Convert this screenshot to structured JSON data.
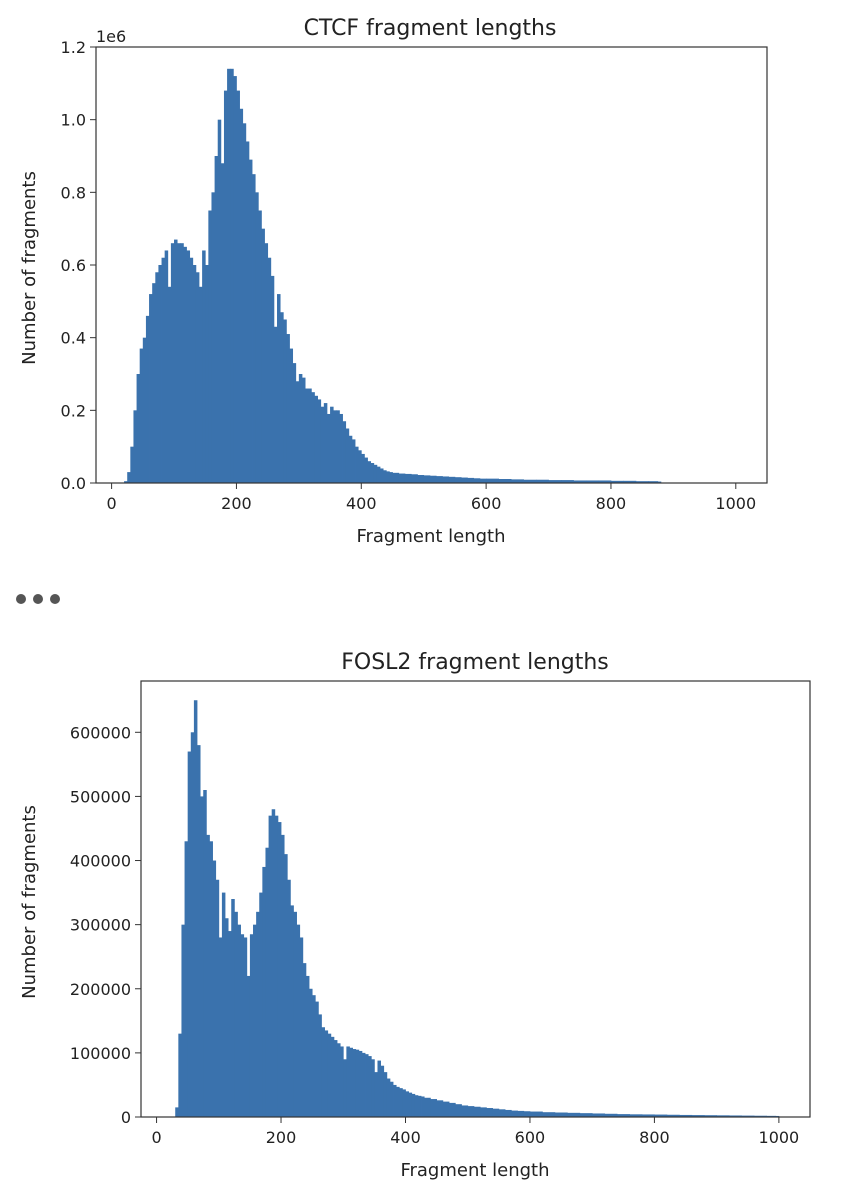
{
  "chart_data": [
    {
      "type": "bar",
      "title": "CTCF fragment lengths",
      "xlabel": "Fragment length",
      "ylabel": "Number of fragments",
      "y_offset_label": "1e6",
      "xlim": [
        -25,
        1050
      ],
      "ylim": [
        0,
        1.2
      ],
      "y_scale_factor": 1000000,
      "xticks": [
        0,
        200,
        400,
        600,
        800,
        1000
      ],
      "yticks": [
        0.0,
        0.2,
        0.4,
        0.6,
        0.8,
        1.0,
        1.2
      ],
      "ytick_labels": [
        "0.0",
        "0.2",
        "0.4",
        "0.6",
        "0.8",
        "1.0",
        "1.2"
      ],
      "bar_color": "#3a72ad",
      "bin_width": 5,
      "x": [
        20,
        25,
        30,
        35,
        40,
        45,
        50,
        55,
        60,
        65,
        70,
        75,
        80,
        85,
        90,
        95,
        100,
        105,
        110,
        115,
        120,
        125,
        130,
        135,
        140,
        145,
        150,
        155,
        160,
        165,
        170,
        175,
        180,
        185,
        190,
        195,
        200,
        205,
        210,
        215,
        220,
        225,
        230,
        235,
        240,
        245,
        250,
        255,
        260,
        265,
        270,
        275,
        280,
        285,
        290,
        295,
        300,
        305,
        310,
        315,
        320,
        325,
        330,
        335,
        340,
        345,
        350,
        355,
        360,
        365,
        370,
        375,
        380,
        385,
        390,
        395,
        400,
        405,
        410,
        415,
        420,
        425,
        430,
        435,
        440,
        445,
        450,
        460,
        470,
        480,
        490,
        500,
        510,
        520,
        530,
        540,
        550,
        560,
        570,
        580,
        590,
        600,
        620,
        640,
        660,
        680,
        700,
        720,
        740,
        760,
        780,
        800,
        820,
        840,
        860,
        875
      ],
      "values": [
        0.005,
        0.03,
        0.1,
        0.2,
        0.3,
        0.37,
        0.4,
        0.46,
        0.52,
        0.55,
        0.58,
        0.6,
        0.62,
        0.64,
        0.54,
        0.66,
        0.67,
        0.66,
        0.66,
        0.65,
        0.64,
        0.62,
        0.6,
        0.58,
        0.54,
        0.64,
        0.6,
        0.75,
        0.8,
        0.9,
        1.0,
        0.88,
        1.08,
        1.14,
        1.14,
        1.12,
        1.08,
        1.03,
        0.99,
        0.94,
        0.89,
        0.85,
        0.8,
        0.75,
        0.7,
        0.66,
        0.62,
        0.57,
        0.43,
        0.52,
        0.47,
        0.45,
        0.41,
        0.37,
        0.33,
        0.28,
        0.3,
        0.29,
        0.26,
        0.26,
        0.25,
        0.24,
        0.23,
        0.21,
        0.22,
        0.19,
        0.21,
        0.2,
        0.2,
        0.19,
        0.17,
        0.15,
        0.13,
        0.12,
        0.1,
        0.09,
        0.08,
        0.07,
        0.06,
        0.055,
        0.05,
        0.045,
        0.04,
        0.035,
        0.032,
        0.03,
        0.028,
        0.026,
        0.025,
        0.024,
        0.022,
        0.021,
        0.02,
        0.019,
        0.018,
        0.017,
        0.016,
        0.015,
        0.014,
        0.013,
        0.012,
        0.012,
        0.011,
        0.01,
        0.009,
        0.009,
        0.008,
        0.008,
        0.007,
        0.007,
        0.007,
        0.006,
        0.006,
        0.005,
        0.005,
        0.004
      ]
    },
    {
      "type": "bar",
      "title": "FOSL2 fragment lengths",
      "xlabel": "Fragment length",
      "ylabel": "Number of fragments",
      "xlim": [
        -25,
        1050
      ],
      "ylim": [
        0,
        680000
      ],
      "y_scale_factor": 1,
      "xticks": [
        0,
        200,
        400,
        600,
        800,
        1000
      ],
      "yticks": [
        0,
        100000,
        200000,
        300000,
        400000,
        500000,
        600000
      ],
      "ytick_labels": [
        "0",
        "100000",
        "200000",
        "300000",
        "400000",
        "500000",
        "600000"
      ],
      "bar_color": "#3a72ad",
      "bin_width": 5,
      "x": [
        30,
        35,
        40,
        45,
        50,
        55,
        60,
        65,
        70,
        75,
        80,
        85,
        90,
        95,
        100,
        105,
        110,
        115,
        120,
        125,
        130,
        135,
        140,
        145,
        150,
        155,
        160,
        165,
        170,
        175,
        180,
        185,
        190,
        195,
        200,
        205,
        210,
        215,
        220,
        225,
        230,
        235,
        240,
        245,
        250,
        255,
        260,
        265,
        270,
        275,
        280,
        285,
        290,
        295,
        300,
        305,
        310,
        315,
        320,
        325,
        330,
        335,
        340,
        345,
        350,
        355,
        360,
        365,
        370,
        375,
        380,
        385,
        390,
        395,
        400,
        405,
        410,
        415,
        420,
        425,
        430,
        440,
        450,
        460,
        470,
        480,
        490,
        500,
        510,
        520,
        530,
        540,
        550,
        560,
        570,
        580,
        590,
        600,
        620,
        640,
        660,
        680,
        700,
        720,
        740,
        760,
        780,
        800,
        820,
        840,
        860,
        880,
        900,
        920,
        940,
        960,
        980,
        995
      ],
      "values": [
        15000,
        130000,
        300000,
        430000,
        570000,
        600000,
        650000,
        580000,
        500000,
        510000,
        440000,
        430000,
        400000,
        370000,
        280000,
        350000,
        310000,
        290000,
        340000,
        320000,
        300000,
        285000,
        280000,
        220000,
        285000,
        300000,
        320000,
        350000,
        390000,
        420000,
        470000,
        480000,
        470000,
        460000,
        440000,
        410000,
        370000,
        330000,
        320000,
        300000,
        280000,
        240000,
        220000,
        200000,
        190000,
        180000,
        160000,
        140000,
        135000,
        130000,
        125000,
        120000,
        115000,
        110000,
        90000,
        110000,
        108000,
        106000,
        105000,
        103000,
        100000,
        98000,
        95000,
        90000,
        70000,
        88000,
        80000,
        70000,
        60000,
        55000,
        50000,
        47000,
        45000,
        43000,
        40000,
        38000,
        36000,
        34000,
        33000,
        32000,
        30000,
        28000,
        26000,
        24000,
        22000,
        20000,
        18000,
        17000,
        16000,
        15000,
        14000,
        13000,
        12000,
        11000,
        10000,
        9500,
        9000,
        8500,
        7500,
        7000,
        6500,
        6000,
        5500,
        5000,
        4500,
        4200,
        4000,
        3800,
        3500,
        3200,
        3000,
        2800,
        2600,
        2400,
        2200,
        2000,
        1800,
        1600
      ]
    }
  ]
}
